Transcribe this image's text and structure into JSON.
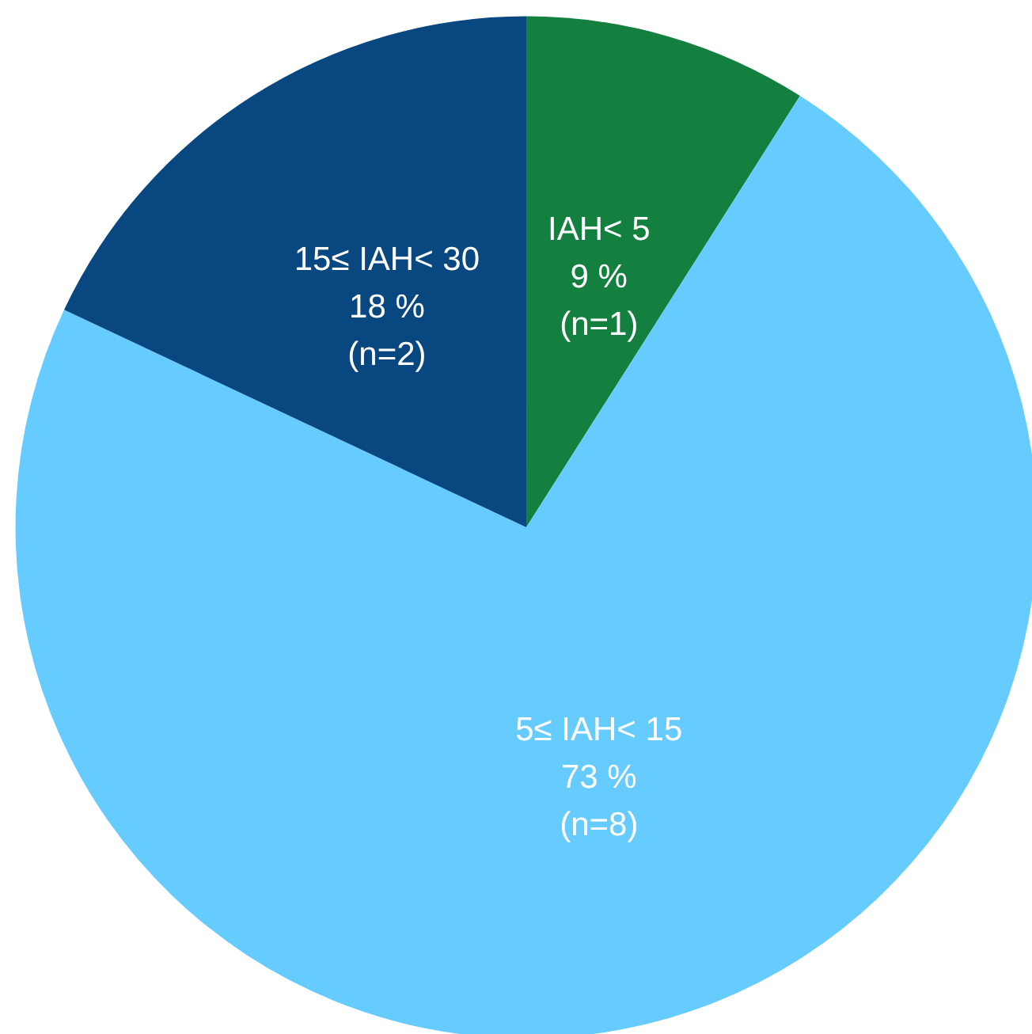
{
  "chart_data": {
    "type": "pie",
    "categories": [
      "IAH< 5",
      "5≤ IAH< 15",
      "15≤ IAH< 30"
    ],
    "values": [
      9,
      73,
      18
    ],
    "colors": [
      "#138040",
      "#66ccff",
      "#08477f"
    ],
    "value_labels": [
      "9 %",
      "73 %",
      "18 %"
    ],
    "annotations": [
      "(n=1)",
      "(n=8)",
      "(n=2)"
    ],
    "legend": false
  }
}
